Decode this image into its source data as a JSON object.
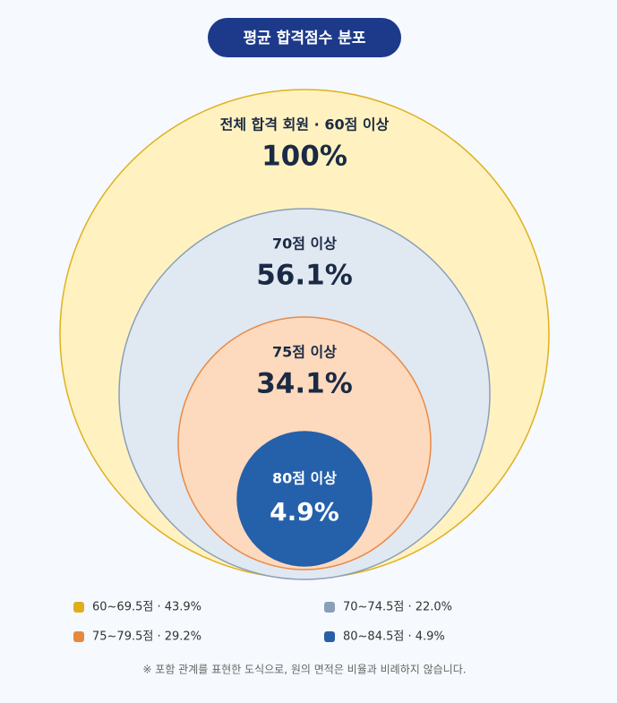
{
  "chart_data": {
    "type": "nested-circle",
    "title": "평균 합격점수 분포",
    "circles": [
      {
        "name": "전체 합격 회원 · 60점 이상",
        "value": 100,
        "value_label": "100%",
        "color": "#fff2c0",
        "stroke": "#e0b020"
      },
      {
        "name": "70점 이상",
        "value": 56.1,
        "value_label": "56.1%",
        "color": "#e0e8f2",
        "stroke": "#8aa0b8"
      },
      {
        "name": "75점 이상",
        "value": 34.1,
        "value_label": "34.1%",
        "color": "#fddabd",
        "stroke": "#e88a48"
      },
      {
        "name": "80점 이상",
        "value": 4.9,
        "value_label": "4.9%",
        "color": "#2560aa",
        "stroke": "#2560aa"
      }
    ],
    "legend": [
      {
        "label": "60~69.5점 · 43.9%",
        "value": 43.9,
        "color": "#e0ae1c"
      },
      {
        "label": "70~74.5점 · 22.0%",
        "value": 22.0,
        "color": "#8a9fb8"
      },
      {
        "label": "75~79.5점 · 29.2%",
        "value": 29.2,
        "color": "#e8883e"
      },
      {
        "label": "80~84.5점 · 4.9%",
        "value": 4.9,
        "color": "#2860a8"
      }
    ],
    "note": "※ 포함 관계를 표현한 도식으로, 원의 면적은 비율과 비례하지 않습니다."
  }
}
